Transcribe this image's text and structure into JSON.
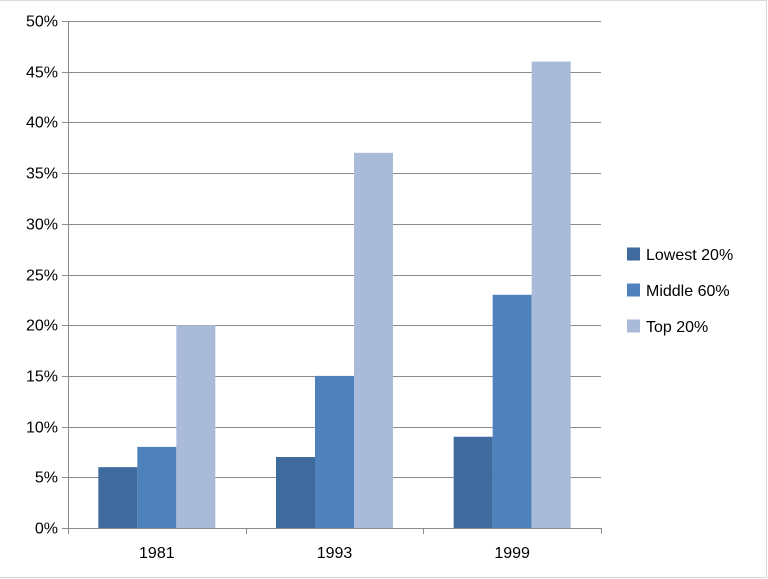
{
  "chart_data": {
    "type": "bar",
    "categories": [
      "1981",
      "1993",
      "1999"
    ],
    "series": [
      {
        "name": "Lowest 20%",
        "values": [
          6,
          7,
          9
        ],
        "color": "#3e6a9e"
      },
      {
        "name": "Middle 60%",
        "values": [
          8,
          15,
          23
        ],
        "color": "#4f81bd"
      },
      {
        "name": "Top 20%",
        "values": [
          20,
          37,
          46
        ],
        "color": "#a9bbd9"
      }
    ],
    "ylim": [
      0,
      50
    ],
    "ytick_labels": [
      "0%",
      "5%",
      "10%",
      "15%",
      "20%",
      "25%",
      "30%",
      "35%",
      "40%",
      "45%",
      "50%"
    ],
    "grid": true,
    "legend_position": "right",
    "gridline_color": "#8c8c8c"
  }
}
